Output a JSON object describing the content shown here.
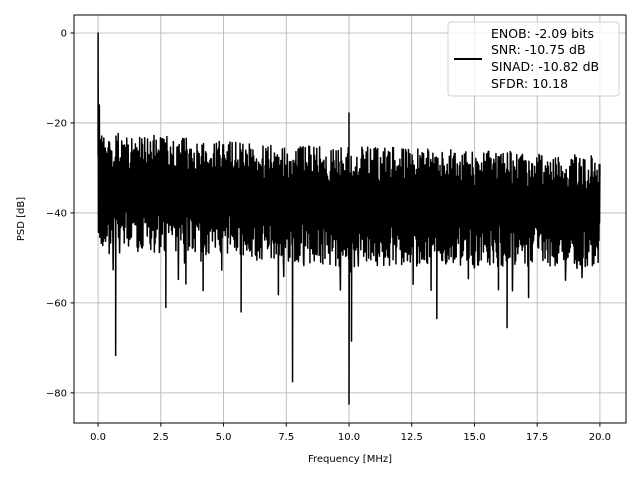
{
  "chart_data": {
    "type": "line",
    "title": "",
    "xlabel": "Frequency [MHz]",
    "ylabel": "PSD [dB]",
    "xlim": [
      -0.96,
      21.04
    ],
    "ylim": [
      -86.7,
      4
    ],
    "grid": true,
    "xticks": [
      0.0,
      2.5,
      5.0,
      7.5,
      10.0,
      12.5,
      15.0,
      17.5,
      20.0
    ],
    "xtick_labels": [
      "0.0",
      "2.5",
      "5.0",
      "7.5",
      "10.0",
      "12.5",
      "15.0",
      "17.5",
      "20.0"
    ],
    "yticks": [
      0,
      -20,
      -40,
      -60,
      -80
    ],
    "ytick_labels": [
      "0",
      "−20",
      "−40",
      "−60",
      "−80"
    ],
    "series": [
      {
        "color": "#000000",
        "x_range": [
          0,
          20
        ],
        "noise_upper_envelope": [
          [
            0,
            -22
          ],
          [
            3,
            -23
          ],
          [
            7,
            -25
          ],
          [
            12,
            -25.5
          ],
          [
            20,
            -27
          ]
        ],
        "noise_lower_envelope": [
          [
            0,
            -46
          ],
          [
            5,
            -48
          ],
          [
            10,
            -50
          ],
          [
            20,
            -50
          ]
        ],
        "notable_points": [
          {
            "x": 0.0,
            "y": 0.0
          },
          {
            "x": 0.05,
            "y": -16
          },
          {
            "x": 0.7,
            "y": -71.7
          },
          {
            "x": 2.7,
            "y": -61
          },
          {
            "x": 5.7,
            "y": -62
          },
          {
            "x": 7.75,
            "y": -77.5
          },
          {
            "x": 10.0,
            "y": -17.8
          },
          {
            "x": 10.0,
            "y": -82.5
          },
          {
            "x": 10.1,
            "y": -68.5
          },
          {
            "x": 13.5,
            "y": -63.5
          },
          {
            "x": 16.3,
            "y": -65.5
          }
        ]
      }
    ],
    "legend": {
      "location": "top-right",
      "entries": [
        "ENOB: -2.09 bits",
        "SNR: -10.75 dB",
        "SINAD: -10.82 dB",
        "SFDR: 10.18"
      ]
    }
  }
}
